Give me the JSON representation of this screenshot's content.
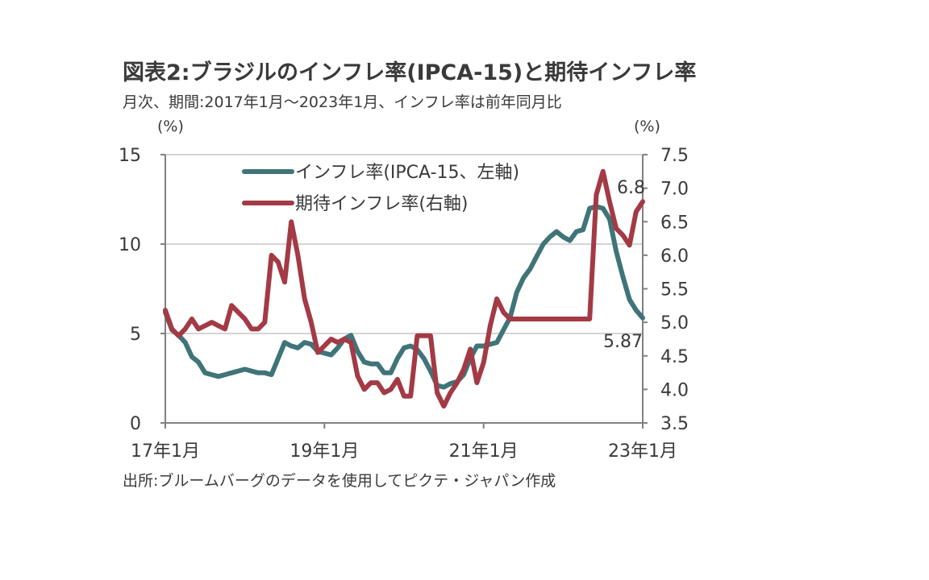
{
  "header": {
    "title": "図表2:ブラジルのインフレ率(IPCA-15)と期待インフレ率",
    "subtitle": "月次、期間:2017年1月～2023年1月、インフレ率は前年同月比"
  },
  "footer": {
    "source": "出所:ブルームバーグのデータを使用してピクテ・ジャパン作成"
  },
  "chart_data": {
    "type": "line",
    "title": "図表2:ブラジルのインフレ率(IPCA-15)と期待インフレ率",
    "subtitle": "月次、期間:2017年1月～2023年1月、インフレ率は前年同月比",
    "y_left_label": "(%)",
    "y_right_label": "(%)",
    "y_left_lim": [
      0,
      15
    ],
    "y_right_lim": [
      3.5,
      7.5
    ],
    "y_left_ticks": [
      "0",
      "5",
      "10",
      "15"
    ],
    "y_right_ticks": [
      "3.5",
      "4.0",
      "4.5",
      "5.0",
      "5.5",
      "6.0",
      "6.5",
      "7.0",
      "7.5"
    ],
    "x_tick_labels": [
      "17年1月",
      "19年1月",
      "21年1月",
      "23年1月"
    ],
    "x_start": "2017-01",
    "x_end": "2023-01",
    "grid": true,
    "legend_position": "top-center",
    "series": [
      {
        "name": "インフレ率(IPCA-15、左軸)",
        "axis": "left",
        "color": "#3f7479",
        "values": [
          6.2,
          5.2,
          4.9,
          4.5,
          3.7,
          3.4,
          2.8,
          2.7,
          2.6,
          2.7,
          2.8,
          2.9,
          3.0,
          2.9,
          2.8,
          2.8,
          2.7,
          3.6,
          4.5,
          4.3,
          4.2,
          4.5,
          4.4,
          4.0,
          3.9,
          3.8,
          4.2,
          4.7,
          4.9,
          4.0,
          3.4,
          3.3,
          3.3,
          2.8,
          2.8,
          3.6,
          4.2,
          4.3,
          4.1,
          3.6,
          2.9,
          2.1,
          2.0,
          2.2,
          2.3,
          2.7,
          3.6,
          4.3,
          4.3,
          4.4,
          4.5,
          5.2,
          5.9,
          7.3,
          8.1,
          8.6,
          9.3,
          10.0,
          10.4,
          10.7,
          10.4,
          10.2,
          10.7,
          10.8,
          12.0,
          12.1,
          12.0,
          11.4,
          9.6,
          8.2,
          6.9,
          6.3,
          5.87
        ]
      },
      {
        "name": "期待インフレ率(右軸)",
        "axis": "right",
        "color": "#a33a45",
        "values": [
          5.18,
          4.9,
          4.8,
          4.9,
          5.05,
          4.9,
          4.95,
          5.0,
          4.95,
          4.9,
          5.25,
          5.15,
          5.05,
          4.9,
          4.9,
          5.0,
          6.0,
          5.9,
          5.6,
          6.5,
          6.0,
          5.35,
          5.0,
          4.55,
          4.65,
          4.75,
          4.7,
          4.75,
          4.7,
          4.2,
          4.0,
          4.1,
          4.1,
          3.95,
          4.0,
          4.15,
          3.9,
          3.9,
          4.8,
          4.8,
          4.8,
          3.95,
          3.75,
          3.95,
          4.1,
          4.3,
          4.6,
          4.1,
          4.4,
          4.95,
          5.35,
          5.15,
          5.05,
          5.05,
          5.05,
          5.05,
          5.05,
          5.05,
          5.05,
          5.05,
          5.05,
          5.05,
          5.05,
          5.05,
          5.05,
          6.9,
          7.25,
          6.8,
          6.4,
          6.3,
          6.15,
          6.65,
          6.8
        ]
      }
    ],
    "annotations": [
      {
        "text": "6.8",
        "series": "期待インフレ率(右軸)"
      },
      {
        "text": "5.87",
        "series": "インフレ率(IPCA-15、左軸)"
      }
    ]
  }
}
